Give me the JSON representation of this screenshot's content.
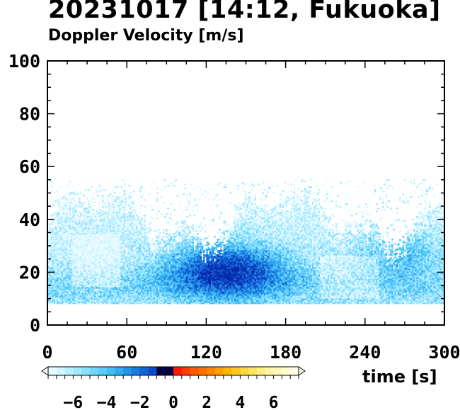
{
  "title": "20231017 [14:12, Fukuoka]",
  "subtitle": "Doppler Velocity [m/s]",
  "chart_data": {
    "type": "heatmap",
    "title": "20231017 [14:12, Fukuoka]",
    "subtitle": "Doppler Velocity [m/s]",
    "xlabel": "time [s]",
    "ylabel": "",
    "xlim": [
      0,
      300
    ],
    "ylim": [
      0,
      100
    ],
    "x_ticks": [
      0,
      60,
      120,
      180,
      240,
      300
    ],
    "y_ticks": [
      0,
      20,
      40,
      60,
      80,
      100
    ],
    "data_height_range": [
      8,
      50
    ],
    "colorbar": {
      "range": [
        -7.5,
        7.5
      ],
      "ticks": [
        -6,
        -4,
        -2,
        0,
        2,
        4,
        6
      ],
      "tick_labels": [
        "−6",
        "−4",
        "−2",
        "0",
        "2",
        "4",
        "6"
      ],
      "colors": [
        "#e0ffff",
        "#a0f0ff",
        "#60d8ff",
        "#30b8f8",
        "#1890f0",
        "#1060e0",
        "#0838c8",
        "#0010a0",
        "#000060",
        "#ff2000",
        "#ff6000",
        "#ff9000",
        "#ffc000",
        "#ffe040",
        "#ffff80",
        "#ffffc0"
      ]
    },
    "field_description": "Mostly negative velocities (-1 to -6 m/s), strongest around t=90-180 s at 10-30 m height"
  }
}
